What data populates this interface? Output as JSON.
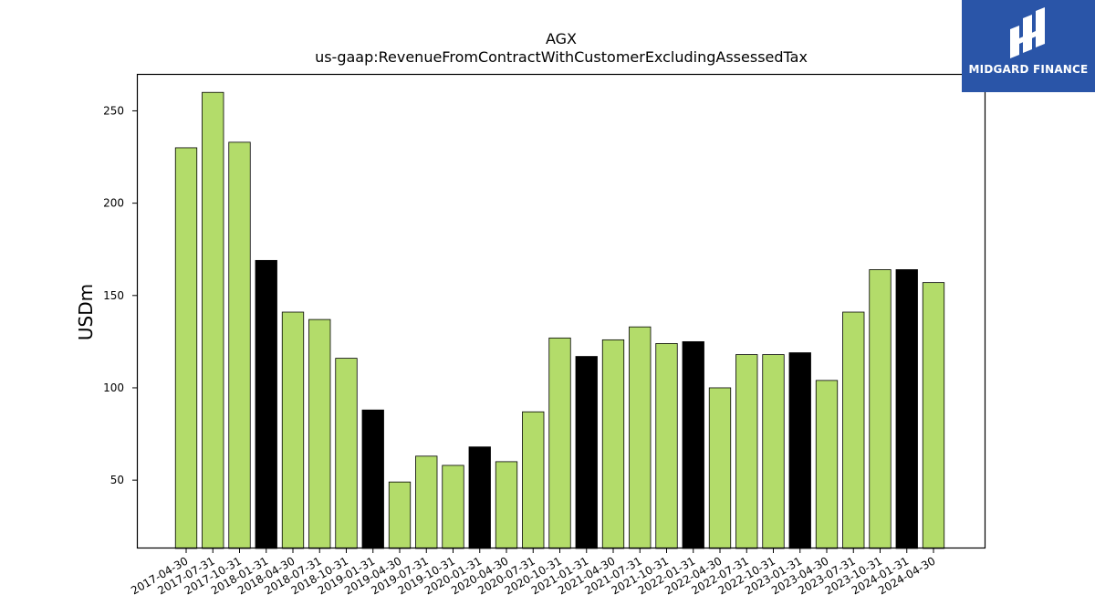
{
  "chart_data": {
    "type": "bar",
    "title": "AGX",
    "subtitle": "us-gaap:RevenueFromContractWithCustomerExcludingAssessedTax",
    "xlabel": "",
    "ylabel": "USDm",
    "ylim": [
      13,
      270
    ],
    "yticks": [
      50,
      100,
      150,
      200,
      250
    ],
    "grid": false,
    "colors": {
      "quarter": "#b3dc6a",
      "fiscal_year_end": "#000000",
      "edge": "#000000"
    },
    "categories": [
      "2017-04-30",
      "2017-07-31",
      "2017-10-31",
      "2018-01-31",
      "2018-04-30",
      "2018-07-31",
      "2018-10-31",
      "2019-01-31",
      "2019-04-30",
      "2019-07-31",
      "2019-10-31",
      "2020-01-31",
      "2020-04-30",
      "2020-07-31",
      "2020-10-31",
      "2021-01-31",
      "2021-04-30",
      "2021-07-31",
      "2021-10-31",
      "2022-01-31",
      "2022-04-30",
      "2022-07-31",
      "2022-10-31",
      "2023-01-31",
      "2023-04-30",
      "2023-07-31",
      "2023-10-31",
      "2024-01-31",
      "2024-04-30"
    ],
    "values": [
      230,
      260,
      233,
      169,
      141,
      137,
      116,
      88,
      49,
      63,
      58,
      68,
      60,
      87,
      127,
      117,
      126,
      133,
      124,
      125,
      100,
      118,
      118,
      119,
      104,
      141,
      164,
      164,
      157
    ],
    "highlight": [
      false,
      false,
      false,
      true,
      false,
      false,
      false,
      true,
      false,
      false,
      false,
      true,
      false,
      false,
      false,
      true,
      false,
      false,
      false,
      true,
      false,
      false,
      false,
      true,
      false,
      false,
      false,
      true,
      false
    ]
  },
  "logo": {
    "text": "MIDGARD FINANCE",
    "icon": "midgard-logo-icon"
  }
}
